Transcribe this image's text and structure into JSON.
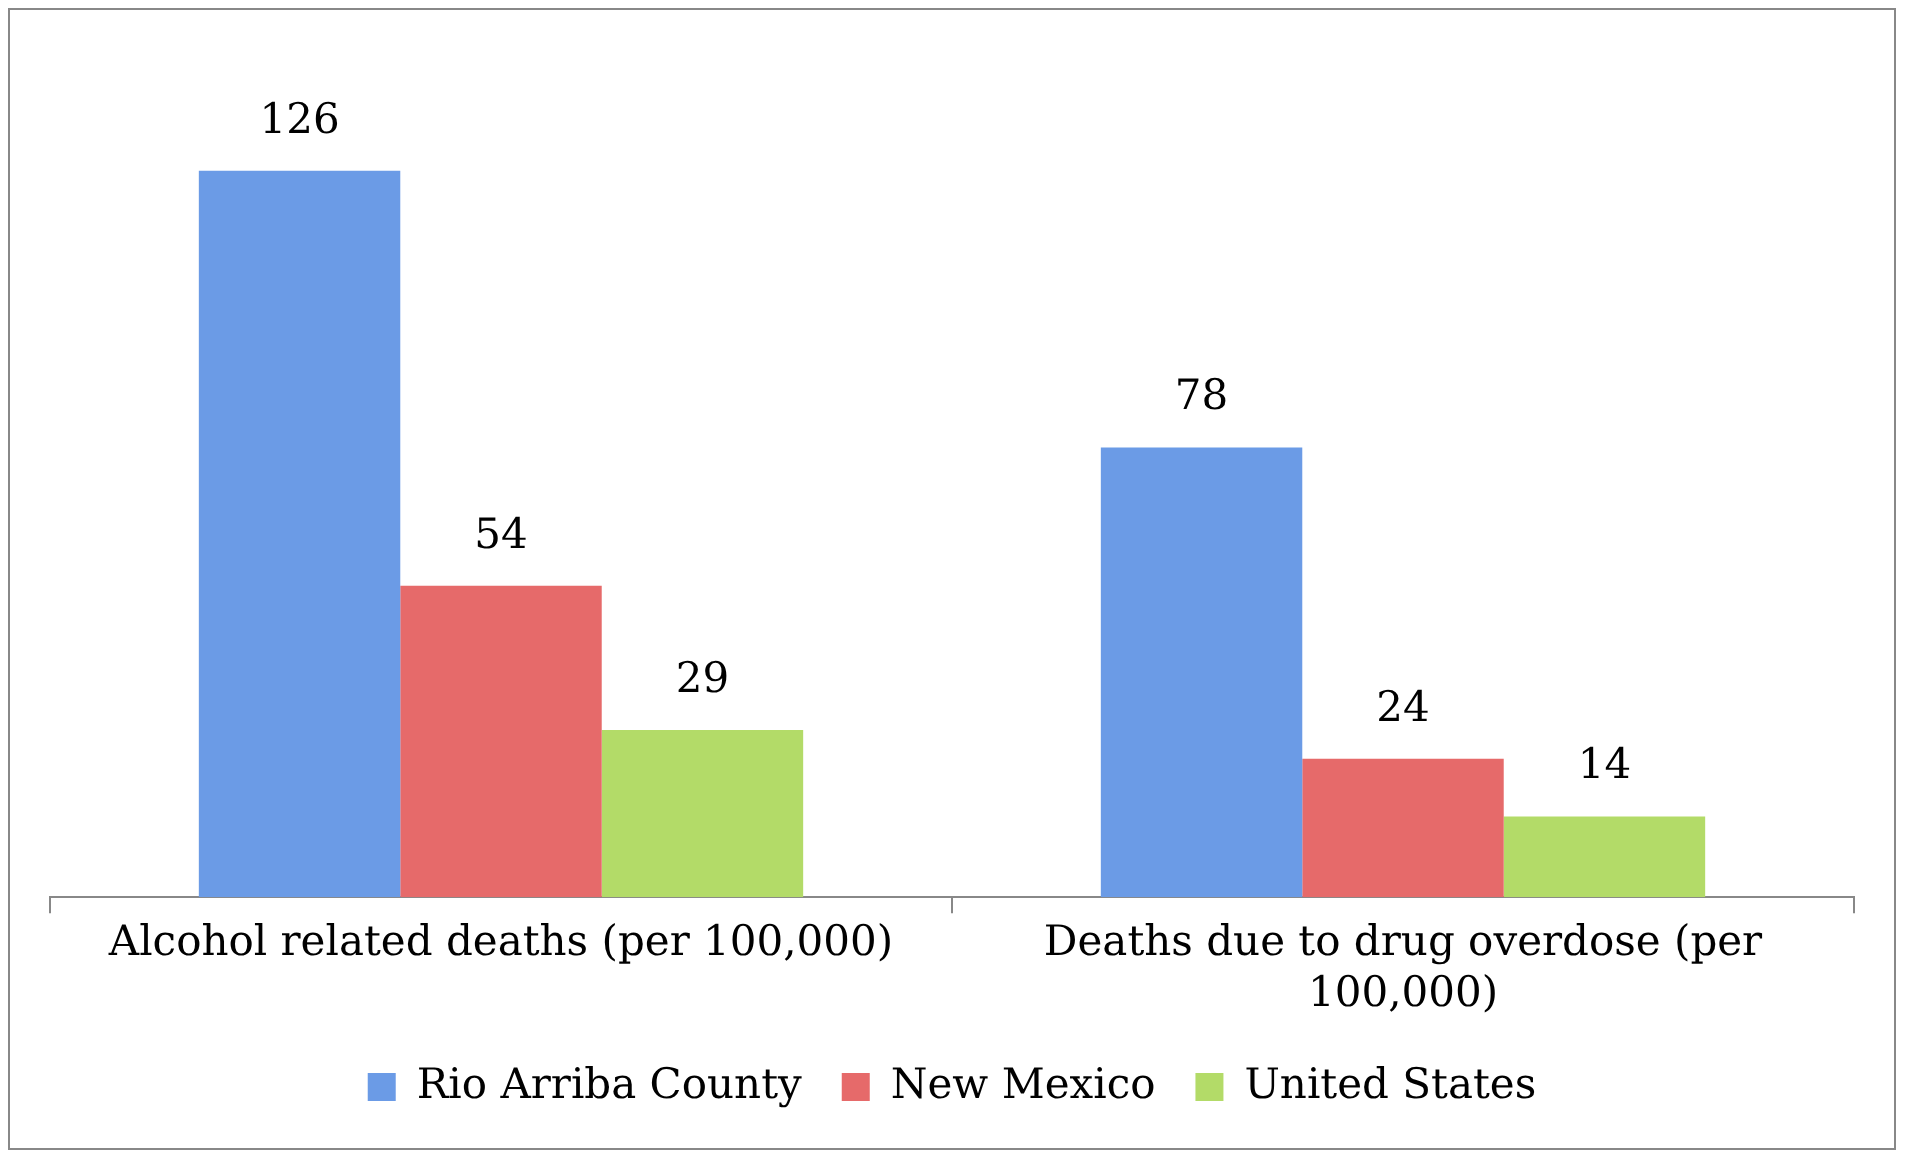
{
  "chart_data": {
    "type": "bar",
    "categories": [
      "Alcohol related deaths (per 100,000)",
      "Deaths due to drug overdose (per 100,000)"
    ],
    "series": [
      {
        "name": "Rio Arriba County",
        "color": "#6b9be6",
        "values": [
          126,
          78
        ]
      },
      {
        "name": "New Mexico",
        "color": "#e66a6a",
        "values": [
          54,
          24
        ]
      },
      {
        "name": "United States",
        "color": "#b3db68",
        "values": [
          29,
          14
        ]
      }
    ],
    "tick_labels": "x",
    "data_labels": true,
    "legend": "bottom",
    "grid": false
  }
}
